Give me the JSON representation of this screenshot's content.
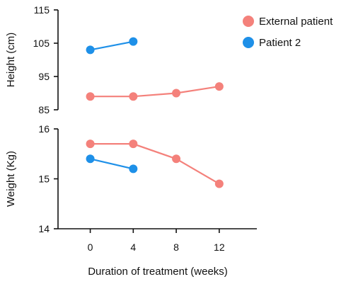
{
  "chart_data": [
    {
      "panel": "top",
      "type": "line",
      "ylabel": "Height (cm)",
      "ylim": [
        85,
        115
      ],
      "yticks": [
        85,
        95,
        105,
        115
      ],
      "x": [
        0,
        4,
        8,
        12
      ],
      "series": [
        {
          "name": "External patient",
          "color": "#F4817B",
          "x": [
            0,
            4,
            8,
            12
          ],
          "values": [
            89,
            89,
            90,
            92
          ]
        },
        {
          "name": "Patient 2",
          "color": "#1E90E8",
          "x": [
            0,
            4
          ],
          "values": [
            103,
            105.5
          ]
        }
      ]
    },
    {
      "panel": "bottom",
      "type": "line",
      "ylabel": "Weight (Kg)",
      "ylim": [
        14,
        16
      ],
      "yticks": [
        14,
        15,
        16
      ],
      "x": [
        0,
        4,
        8,
        12
      ],
      "series": [
        {
          "name": "External patient",
          "color": "#F4817B",
          "x": [
            0,
            4,
            8,
            12
          ],
          "values": [
            15.7,
            15.7,
            15.4,
            14.9
          ]
        },
        {
          "name": "Patient 2",
          "color": "#1E90E8",
          "x": [
            0,
            4
          ],
          "values": [
            15.4,
            15.2
          ]
        }
      ]
    }
  ],
  "shared": {
    "xlabel": "Duration of treatment (weeks)",
    "xticks": [
      0,
      4,
      8,
      12
    ],
    "xlim": [
      -3,
      15.5
    ],
    "legend": {
      "position": "top-right",
      "items": [
        {
          "label": "External patient",
          "color": "#F4817B"
        },
        {
          "label": "Patient 2",
          "color": "#1E90E8"
        }
      ]
    }
  }
}
